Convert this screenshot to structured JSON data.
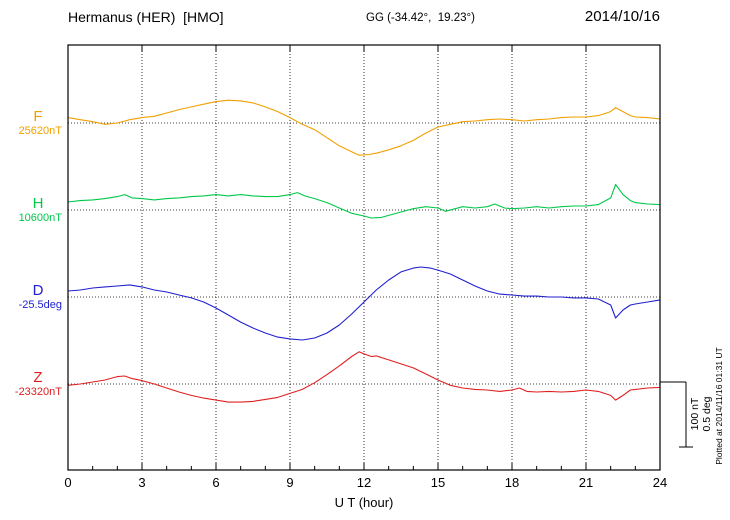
{
  "header": {
    "station": "Hermanus (HER)  [HMO]",
    "coords": "GG (-34.42°,  19.23°)",
    "date": "2014/10/16"
  },
  "side": {
    "scale_nT": "100 nT",
    "scale_deg": "0.5 deg",
    "plotted_at": "Plotted at 2014/11/16 01:31 UT"
  },
  "chart_data": {
    "type": "line",
    "title": "Hermanus (HER)  [HMO]",
    "date": "2014/10/16",
    "xlabel": "U T (hour)",
    "x_range": [
      0,
      24
    ],
    "x_ticks": [
      0,
      3,
      6,
      9,
      12,
      15,
      18,
      21,
      24
    ],
    "grid": "dotted vertical lines at 3-hour ticks; dotted horizontal baseline per trace",
    "scale_bar": {
      "nT": "100 nT",
      "deg": "0.5 deg"
    },
    "points_format": "[UT hour, offset from baseline in series unit]",
    "series": [
      {
        "name": "F",
        "unit": "nT",
        "color": "#f0a000",
        "baseline": 25620,
        "baseline_label": "25620nT",
        "points": [
          [
            0,
            8
          ],
          [
            0.5,
            5
          ],
          [
            1,
            2
          ],
          [
            1.5,
            -2
          ],
          [
            2,
            0
          ],
          [
            2.5,
            5
          ],
          [
            3,
            8
          ],
          [
            3.5,
            10
          ],
          [
            4,
            15
          ],
          [
            4.5,
            20
          ],
          [
            5,
            24
          ],
          [
            5.5,
            28
          ],
          [
            6,
            32
          ],
          [
            6.5,
            34
          ],
          [
            7,
            33
          ],
          [
            7.5,
            30
          ],
          [
            8,
            24
          ],
          [
            8.5,
            17
          ],
          [
            9,
            8
          ],
          [
            9.5,
            -2
          ],
          [
            10,
            -10
          ],
          [
            10.5,
            -22
          ],
          [
            11,
            -34
          ],
          [
            11.5,
            -43
          ],
          [
            11.8,
            -48
          ],
          [
            12.2,
            -47
          ],
          [
            12.5,
            -45
          ],
          [
            13,
            -40
          ],
          [
            13.5,
            -34
          ],
          [
            14,
            -26
          ],
          [
            14.5,
            -15
          ],
          [
            15,
            -6
          ],
          [
            15.5,
            -2
          ],
          [
            16,
            2
          ],
          [
            16.5,
            3
          ],
          [
            17,
            5
          ],
          [
            17.5,
            6
          ],
          [
            18,
            5
          ],
          [
            18.5,
            3
          ],
          [
            19,
            5
          ],
          [
            19.5,
            6
          ],
          [
            20,
            8
          ],
          [
            20.5,
            9
          ],
          [
            21,
            9
          ],
          [
            21.5,
            11
          ],
          [
            22,
            17
          ],
          [
            22.2,
            23
          ],
          [
            22.5,
            17
          ],
          [
            22.8,
            11
          ],
          [
            23,
            9
          ],
          [
            23.5,
            8
          ],
          [
            24,
            6
          ]
        ]
      },
      {
        "name": "H",
        "unit": "nT",
        "color": "#00c84b",
        "baseline": 10600,
        "baseline_label": "10600nT",
        "points": [
          [
            0,
            12
          ],
          [
            0.5,
            14
          ],
          [
            1,
            15
          ],
          [
            1.5,
            17
          ],
          [
            2,
            20
          ],
          [
            2.3,
            23
          ],
          [
            2.6,
            18
          ],
          [
            3,
            17
          ],
          [
            3.5,
            15
          ],
          [
            4,
            17
          ],
          [
            4.5,
            18
          ],
          [
            5,
            20
          ],
          [
            5.5,
            21
          ],
          [
            6,
            23
          ],
          [
            6.5,
            21
          ],
          [
            7,
            23
          ],
          [
            7.5,
            21
          ],
          [
            8,
            20
          ],
          [
            8.5,
            20
          ],
          [
            9,
            23
          ],
          [
            9.3,
            26
          ],
          [
            9.6,
            21
          ],
          [
            10,
            17
          ],
          [
            10.5,
            11
          ],
          [
            11,
            3
          ],
          [
            11.5,
            -5
          ],
          [
            12,
            -9
          ],
          [
            12.3,
            -12
          ],
          [
            12.7,
            -11
          ],
          [
            13,
            -8
          ],
          [
            13.5,
            -3
          ],
          [
            14,
            2
          ],
          [
            14.5,
            5
          ],
          [
            15,
            3
          ],
          [
            15.3,
            -2
          ],
          [
            15.7,
            2
          ],
          [
            16,
            5
          ],
          [
            16.5,
            3
          ],
          [
            17,
            5
          ],
          [
            17.3,
            9
          ],
          [
            17.7,
            3
          ],
          [
            18,
            2
          ],
          [
            18.5,
            3
          ],
          [
            19,
            5
          ],
          [
            19.5,
            3
          ],
          [
            20,
            5
          ],
          [
            20.5,
            6
          ],
          [
            21,
            6
          ],
          [
            21.5,
            8
          ],
          [
            22,
            18
          ],
          [
            22.2,
            38
          ],
          [
            22.5,
            23
          ],
          [
            22.8,
            14
          ],
          [
            23,
            11
          ],
          [
            23.5,
            9
          ],
          [
            24,
            8
          ]
        ]
      },
      {
        "name": "D",
        "unit": "deg",
        "color": "#2020d0",
        "baseline": -25.5,
        "baseline_label": "-25.5deg",
        "points": [
          [
            0,
            0.045
          ],
          [
            0.5,
            0.052
          ],
          [
            1,
            0.067
          ],
          [
            1.5,
            0.075
          ],
          [
            2,
            0.082
          ],
          [
            2.5,
            0.09
          ],
          [
            3,
            0.075
          ],
          [
            3.5,
            0.052
          ],
          [
            4,
            0.037
          ],
          [
            4.5,
            0.015
          ],
          [
            5,
            -0.007
          ],
          [
            5.5,
            -0.037
          ],
          [
            6,
            -0.082
          ],
          [
            6.5,
            -0.134
          ],
          [
            7,
            -0.187
          ],
          [
            7.5,
            -0.231
          ],
          [
            8,
            -0.269
          ],
          [
            8.5,
            -0.299
          ],
          [
            9,
            -0.313
          ],
          [
            9.5,
            -0.321
          ],
          [
            10,
            -0.306
          ],
          [
            10.5,
            -0.269
          ],
          [
            11,
            -0.209
          ],
          [
            11.5,
            -0.127
          ],
          [
            12,
            -0.037
          ],
          [
            12.5,
            0.052
          ],
          [
            13,
            0.127
          ],
          [
            13.5,
            0.187
          ],
          [
            14,
            0.216
          ],
          [
            14.3,
            0.224
          ],
          [
            14.7,
            0.216
          ],
          [
            15,
            0.201
          ],
          [
            15.5,
            0.172
          ],
          [
            16,
            0.127
          ],
          [
            16.5,
            0.082
          ],
          [
            17,
            0.045
          ],
          [
            17.5,
            0.022
          ],
          [
            18,
            0.015
          ],
          [
            18.5,
            0.007
          ],
          [
            19,
            0.007
          ],
          [
            19.5,
            0
          ],
          [
            20,
            0
          ],
          [
            20.5,
            -0.007
          ],
          [
            21,
            -0.007
          ],
          [
            21.5,
            -0.015
          ],
          [
            22,
            -0.06
          ],
          [
            22.2,
            -0.157
          ],
          [
            22.5,
            -0.097
          ],
          [
            22.8,
            -0.06
          ],
          [
            23,
            -0.052
          ],
          [
            23.5,
            -0.037
          ],
          [
            24,
            -0.022
          ]
        ]
      },
      {
        "name": "Z",
        "unit": "nT",
        "color": "#e02020",
        "baseline": -23320,
        "baseline_label": "-23320nT",
        "points": [
          [
            0,
            -2
          ],
          [
            0.5,
            0
          ],
          [
            1,
            3
          ],
          [
            1.5,
            6
          ],
          [
            2,
            11
          ],
          [
            2.3,
            12
          ],
          [
            2.6,
            8
          ],
          [
            3,
            5
          ],
          [
            3.5,
            0
          ],
          [
            4,
            -6
          ],
          [
            4.5,
            -12
          ],
          [
            5,
            -17
          ],
          [
            5.5,
            -21
          ],
          [
            6,
            -24
          ],
          [
            6.5,
            -27
          ],
          [
            7,
            -27
          ],
          [
            7.5,
            -26
          ],
          [
            8,
            -23
          ],
          [
            8.5,
            -20
          ],
          [
            9,
            -14
          ],
          [
            9.5,
            -8
          ],
          [
            10,
            2
          ],
          [
            10.5,
            14
          ],
          [
            11,
            27
          ],
          [
            11.5,
            41
          ],
          [
            11.8,
            48
          ],
          [
            12,
            45
          ],
          [
            12.3,
            41
          ],
          [
            12.5,
            42
          ],
          [
            13,
            36
          ],
          [
            13.5,
            30
          ],
          [
            14,
            24
          ],
          [
            14.5,
            15
          ],
          [
            15,
            6
          ],
          [
            15.5,
            -2
          ],
          [
            16,
            -6
          ],
          [
            16.5,
            -8
          ],
          [
            17,
            -9
          ],
          [
            17.5,
            -11
          ],
          [
            18,
            -9
          ],
          [
            18.3,
            -6
          ],
          [
            18.6,
            -11
          ],
          [
            19,
            -12
          ],
          [
            19.5,
            -11
          ],
          [
            20,
            -12
          ],
          [
            20.5,
            -11
          ],
          [
            21,
            -9
          ],
          [
            21.5,
            -11
          ],
          [
            22,
            -17
          ],
          [
            22.2,
            -24
          ],
          [
            22.5,
            -17
          ],
          [
            22.8,
            -9
          ],
          [
            23,
            -8
          ],
          [
            23.5,
            -6
          ],
          [
            24,
            -5
          ]
        ]
      }
    ]
  }
}
